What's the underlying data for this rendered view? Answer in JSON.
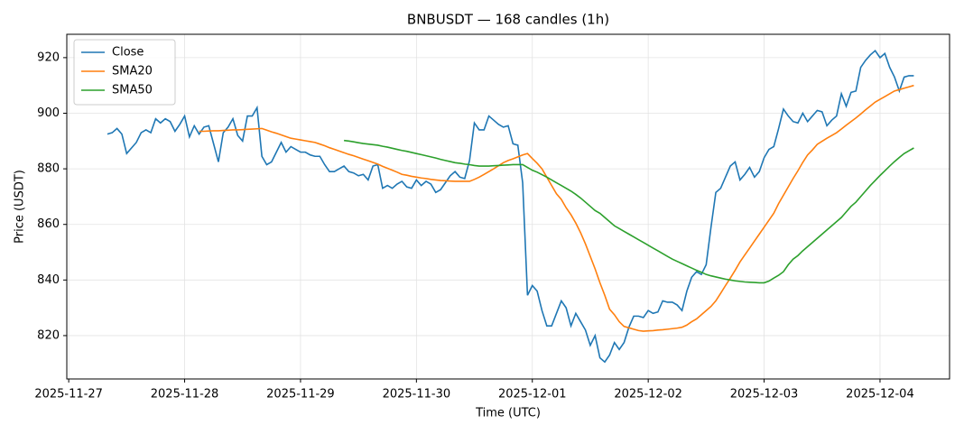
{
  "chart_data": {
    "type": "line",
    "title": "BNBUSDT — 168 candles (1h)",
    "xlabel": "Time (UTC)",
    "ylabel": "Price (USDT)",
    "xlim": [
      -8.4,
      174.4
    ],
    "xticks": [
      {
        "value": -8,
        "label": "2025-11-27"
      },
      {
        "value": 16,
        "label": "2025-11-28"
      },
      {
        "value": 40,
        "label": "2025-11-29"
      },
      {
        "value": 64,
        "label": "2025-11-30"
      },
      {
        "value": 88,
        "label": "2025-12-01"
      },
      {
        "value": 112,
        "label": "2025-12-02"
      },
      {
        "value": 136,
        "label": "2025-12-03"
      },
      {
        "value": 160,
        "label": "2025-12-04"
      }
    ],
    "ylim": [
      804.4,
      928.4
    ],
    "yticks": [
      820,
      840,
      860,
      880,
      900,
      920
    ],
    "grid": true,
    "legend": "upper left",
    "series": [
      {
        "name": "Close",
        "color": "#1f77b4",
        "values": [
          892.5,
          893,
          894.5,
          892.5,
          885.5,
          887.5,
          889.5,
          893,
          894,
          893,
          898,
          896.5,
          898,
          897,
          893.5,
          896,
          899,
          891.5,
          895.5,
          892.5,
          895,
          895.5,
          889,
          882.5,
          893,
          895,
          898,
          892,
          890,
          899,
          899,
          902,
          884.5,
          881.5,
          882.5,
          886,
          889.5,
          886,
          888,
          887,
          886,
          886,
          885,
          884.5,
          884.5,
          881.5,
          879,
          879,
          880,
          881,
          879,
          878.5,
          877.5,
          878,
          876,
          881,
          881.5,
          873,
          874,
          873,
          874.5,
          875.5,
          873.5,
          873,
          876,
          874,
          875.5,
          874.5,
          871.5,
          872.5,
          875,
          877.5,
          879,
          877,
          876.5,
          883,
          896.5,
          894,
          894,
          899,
          897.5,
          896,
          895,
          895.5,
          889,
          888.5,
          875,
          834.5,
          838,
          836,
          829,
          823.5,
          823.5,
          828,
          832.5,
          830,
          823.5,
          828,
          825,
          822,
          816.5,
          820,
          812,
          810.5,
          813,
          817.5,
          815,
          817.5,
          823,
          827,
          827,
          826.5,
          829,
          828,
          828.5,
          832.5,
          832,
          832,
          831,
          829,
          836,
          841,
          843,
          842,
          845.5,
          859,
          871.5,
          873,
          877,
          881,
          882.5,
          876,
          878,
          880.5,
          877,
          879,
          884,
          887,
          888,
          894.5,
          901.5,
          899,
          897,
          896.5,
          900,
          897,
          899,
          901,
          900.5,
          895.5,
          897.5,
          899,
          907,
          902.5,
          907.5,
          908,
          916.5,
          919,
          921,
          922.5,
          920,
          921.5,
          916.5,
          913,
          908,
          913,
          913.5,
          913.5
        ]
      },
      {
        "name": "SMA20",
        "color": "#ff7f0e",
        "values": [
          null,
          null,
          null,
          null,
          null,
          null,
          null,
          null,
          null,
          null,
          null,
          null,
          null,
          null,
          null,
          null,
          null,
          null,
          null,
          893.5,
          893.5,
          893.6,
          893.7,
          893.7,
          893.8,
          893.9,
          894,
          894,
          894.1,
          894.2,
          894.3,
          894.4,
          894.5,
          893.9,
          893.3,
          892.8,
          892.2,
          891.6,
          891,
          890.7,
          890.4,
          890.1,
          889.8,
          889.5,
          888.9,
          888.3,
          887.6,
          887,
          886.4,
          885.8,
          885.2,
          884.7,
          884.1,
          883.5,
          882.9,
          882.3,
          881.7,
          880.9,
          880.2,
          879.5,
          878.8,
          878,
          877.7,
          877.3,
          877,
          876.7,
          876.5,
          876.2,
          876,
          875.8,
          875.7,
          875.6,
          875.5,
          875.5,
          875.5,
          875.5,
          876.2,
          877,
          878,
          879,
          880,
          881.1,
          882.2,
          883,
          883.6,
          884.3,
          885,
          885.5,
          883.7,
          882,
          880,
          877,
          874,
          871,
          869,
          866,
          863.5,
          860.5,
          857,
          853,
          848.5,
          844,
          839,
          834.5,
          829.5,
          827.5,
          825,
          823.3,
          822.8,
          822.3,
          821.8,
          821.6,
          821.7,
          821.8,
          822,
          822.1,
          822.3,
          822.5,
          822.7,
          823,
          823.8,
          825,
          826,
          827.5,
          829,
          830.5,
          832.5,
          835.2,
          838,
          840.7,
          843.5,
          846.5,
          849,
          851.5,
          854,
          856.5,
          859,
          861.5,
          864,
          867.5,
          870.5,
          873.5,
          876.5,
          879.3,
          882.3,
          885,
          886.8,
          888.8,
          889.9,
          891,
          892,
          893,
          894.3,
          895.7,
          897,
          898.3,
          899.7,
          901.2,
          902.6,
          904,
          905,
          906,
          907,
          908,
          908.5,
          909,
          909.5,
          910
        ]
      },
      {
        "name": "SMA50",
        "color": "#2ca02c",
        "values": [
          null,
          null,
          null,
          null,
          null,
          null,
          null,
          null,
          null,
          null,
          null,
          null,
          null,
          null,
          null,
          null,
          null,
          null,
          null,
          null,
          null,
          null,
          null,
          null,
          null,
          null,
          null,
          null,
          null,
          null,
          null,
          null,
          null,
          null,
          null,
          null,
          null,
          null,
          null,
          null,
          null,
          null,
          null,
          null,
          null,
          null,
          null,
          null,
          null,
          890.2,
          890,
          889.7,
          889.4,
          889.1,
          888.9,
          888.7,
          888.5,
          888.1,
          887.8,
          887.4,
          887,
          886.6,
          886.3,
          885.9,
          885.5,
          885.1,
          884.7,
          884.3,
          883.9,
          883.4,
          883,
          882.6,
          882.2,
          882,
          881.7,
          881.5,
          881.2,
          881,
          881,
          881,
          881.1,
          881.2,
          881.3,
          881.4,
          881.5,
          881.5,
          881.5,
          880.5,
          879.5,
          878.8,
          877.9,
          877,
          876,
          875,
          874,
          873,
          872,
          870.8,
          869.5,
          868,
          866.5,
          865,
          864,
          862.5,
          861,
          859.5,
          858.5,
          857.5,
          856.5,
          855.5,
          854.5,
          853.5,
          852.5,
          851.5,
          850.5,
          849.5,
          848.5,
          847.5,
          846.7,
          845.9,
          845.1,
          844.3,
          843.5,
          842.8,
          842,
          841.5,
          841.1,
          840.7,
          840.3,
          840,
          839.7,
          839.5,
          839.3,
          839.2,
          839.1,
          839,
          839,
          839.6,
          840.7,
          841.7,
          843,
          845.5,
          847.5,
          848.8,
          850.5,
          852,
          853.5,
          855,
          856.5,
          858,
          859.5,
          861,
          862.5,
          864.5,
          866.5,
          868,
          870,
          872,
          874,
          875.8,
          877.6,
          879.3,
          881,
          882.6,
          884.1,
          885.5,
          886.5,
          887.5
        ]
      }
    ]
  }
}
